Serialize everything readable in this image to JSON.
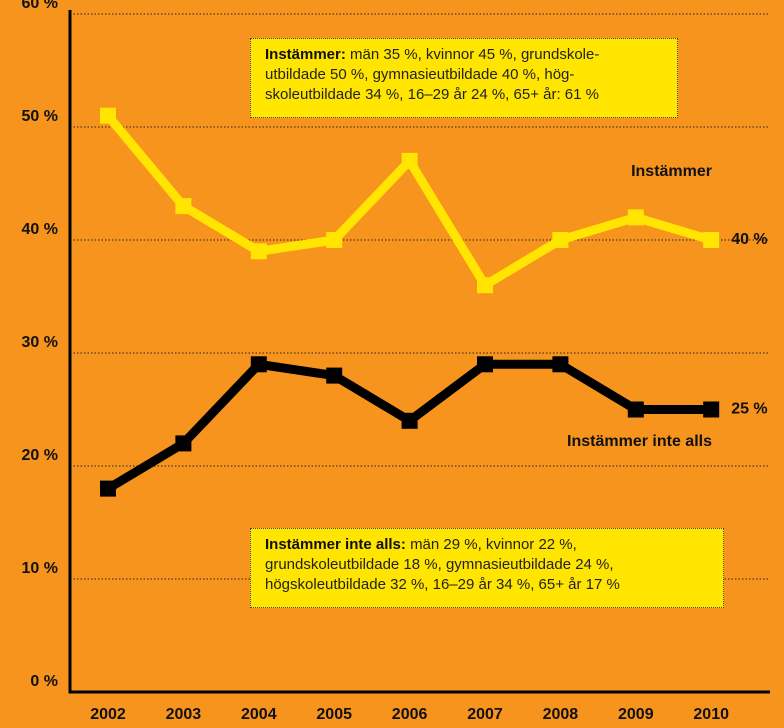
{
  "chart_data": {
    "type": "line",
    "x": [
      "2002",
      "2003",
      "2004",
      "2005",
      "2006",
      "2007",
      "2008",
      "2009",
      "2010"
    ],
    "series": [
      {
        "name": "Instämmer",
        "color": "#ffe500",
        "values": [
          51,
          43,
          39,
          40,
          47,
          36,
          40,
          42,
          40
        ],
        "value_labels": [
          null,
          null,
          null,
          null,
          null,
          null,
          null,
          null,
          "40 %"
        ]
      },
      {
        "name": "Instämmer inte alls",
        "color": "#000000",
        "values": [
          18,
          22,
          29,
          28,
          24,
          29,
          29,
          25,
          25
        ],
        "value_labels": [
          null,
          null,
          null,
          null,
          null,
          null,
          null,
          null,
          "25 %"
        ]
      }
    ],
    "ylim": [
      0,
      60
    ],
    "yticks": [
      {
        "value": 0,
        "label": "0 %"
      },
      {
        "value": 10,
        "label": "10 %"
      },
      {
        "value": 20,
        "label": "20 %"
      },
      {
        "value": 30,
        "label": "30 %"
      },
      {
        "value": 40,
        "label": "40 %"
      },
      {
        "value": 50,
        "label": "50 %"
      },
      {
        "value": 60,
        "label": "60 %"
      }
    ],
    "grid": true,
    "background": "#f7941d",
    "annotations": [
      {
        "label": "Instämmer:",
        "lines": [
          "män 35 %, kvinnor 45 %, grundskole-",
          "utbildade 50 %, gymnasieutbildade 40 %, hög-",
          "skoleutbildade 34 %, 16–29 år 24 %, 65+ år: 61 %"
        ]
      },
      {
        "label": "Instämmer inte alls:",
        "lines": [
          "män 29 %, kvinnor 22 %,",
          "grundskoleutbildade 18 %, gymnasieutbildade 24 %,",
          "högskoleutbildade 32 %, 16–29 år 34 %, 65+ år 17 %"
        ]
      }
    ]
  }
}
